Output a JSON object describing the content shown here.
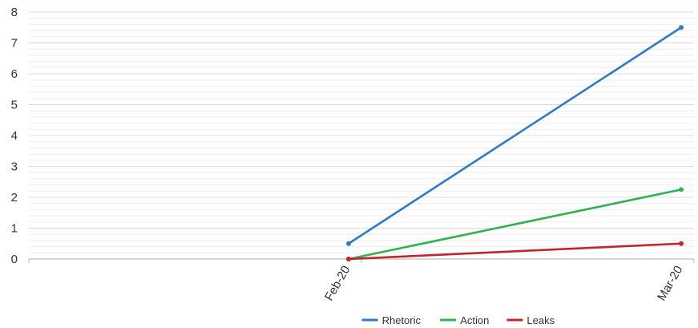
{
  "chart_data": {
    "type": "line",
    "title": "",
    "xlabel": "",
    "ylabel": "",
    "categories": [
      "Feb-20",
      "Mar-20"
    ],
    "ylim": [
      0,
      8
    ],
    "yticks": [
      0,
      1,
      2,
      3,
      4,
      5,
      6,
      7,
      8
    ],
    "grid": true,
    "legend_position": "bottom",
    "series": [
      {
        "name": "Rhetoric",
        "color": "#2f7bc4",
        "values": [
          0.5,
          7.5
        ]
      },
      {
        "name": "Action",
        "color": "#2fb34f",
        "values": [
          0,
          2.25
        ]
      },
      {
        "name": "Leaks",
        "color": "#c0262b",
        "values": [
          0,
          0.5
        ]
      }
    ]
  }
}
